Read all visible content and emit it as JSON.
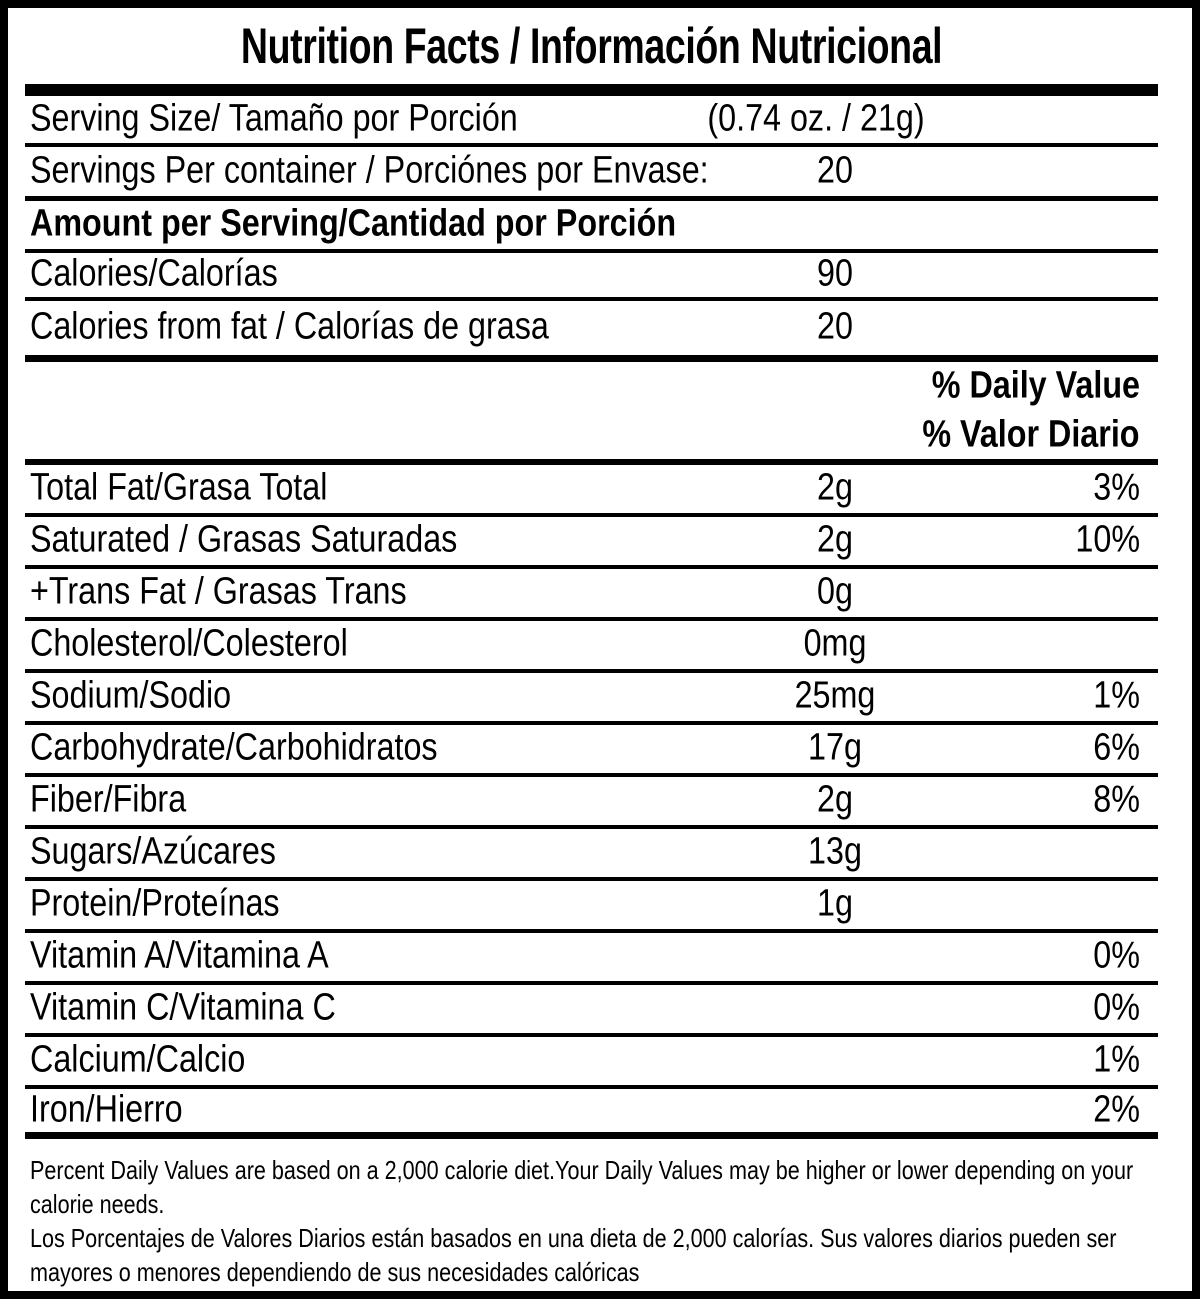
{
  "label": {
    "title": "Nutrition Facts / Información Nutricional",
    "serving_size": {
      "label": "Serving Size/ Tamaño por Porción",
      "value": "(0.74 oz. / 21g)"
    },
    "servings_per_container": {
      "label": "Servings Per container / Porciónes por Envase:",
      "value": "20"
    },
    "amount_per_serving_heading": "Amount per Serving/Cantidad por Porción",
    "calories": {
      "label": "Calories/Calorías",
      "value": "90"
    },
    "calories_from_fat": {
      "label": "Calories from fat / Calorías de grasa",
      "value": "20"
    },
    "daily_value_heading_en": "% Daily Value",
    "daily_value_heading_es": "% Valor Diario",
    "nutrients": [
      {
        "label": "Total Fat/Grasa Total",
        "amount": "2g",
        "percent": "3%"
      },
      {
        "label": "Saturated / Grasas Saturadas",
        "amount": "2g",
        "percent": "10%"
      },
      {
        "label": "+Trans Fat / Grasas Trans",
        "amount": "0g",
        "percent": ""
      },
      {
        "label": "Cholesterol/Colesterol",
        "amount": "0mg",
        "percent": ""
      },
      {
        "label": "Sodium/Sodio",
        "amount": "25mg",
        "percent": "1%"
      },
      {
        "label": "Carbohydrate/Carbohidratos",
        "amount": "17g",
        "percent": "6%"
      },
      {
        "label": "Fiber/Fibra",
        "amount": "2g",
        "percent": "8%"
      },
      {
        "label": "Sugars/Azúcares",
        "amount": "13g",
        "percent": ""
      },
      {
        "label": "Protein/Proteínas",
        "amount": "1g",
        "percent": ""
      },
      {
        "label": "Vitamin A/Vitamina A",
        "amount": "",
        "percent": "0%"
      },
      {
        "label": "Vitamin C/Vitamina C",
        "amount": "",
        "percent": "0%"
      },
      {
        "label": "Calcium/Calcio",
        "amount": "",
        "percent": "1%"
      },
      {
        "label": "Iron/Hierro",
        "amount": "",
        "percent": "2%"
      }
    ],
    "footnote": {
      "en_line1": "Percent Daily Values are based on a 2,000 calorie diet.Your Daily Values may be higher or lower depending on your",
      "en_line2": "calorie needs.",
      "es_line1": "Los Porcentajes de Valores Diarios están basados en una dieta de 2,000 calorías. Sus valores diarios pueden ser",
      "es_line2": "mayores o menores dependiendo de sus necesidades calóricas"
    },
    "colors": {
      "ink": "#000000",
      "background": "#ffffff"
    }
  }
}
